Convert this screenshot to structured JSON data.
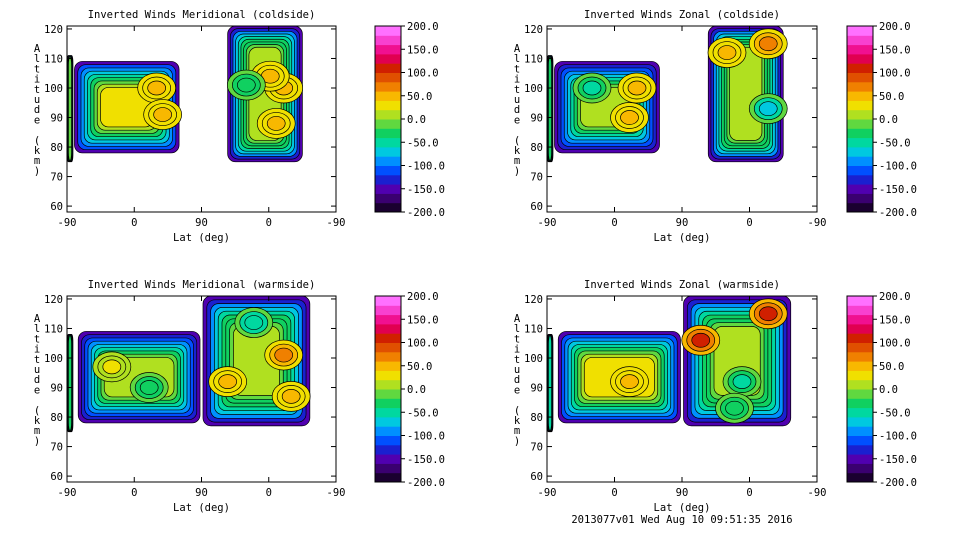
{
  "footer": "2013077v01 Wed Aug 10 09:51:35 2016",
  "colorbar": {
    "ticks": [
      "200.0",
      "150.0",
      "100.0",
      "50.0",
      "0.0",
      "-50.0",
      "-100.0",
      "-150.0",
      "-200.0"
    ],
    "range": [
      -200,
      200
    ],
    "colors": [
      "#1a0030",
      "#3a0070",
      "#5000b0",
      "#1a20d0",
      "#0050ff",
      "#0090ff",
      "#00c8e0",
      "#00d8a0",
      "#10d060",
      "#60d840",
      "#b0e020",
      "#f0e000",
      "#f8b800",
      "#f08000",
      "#e05000",
      "#d02000",
      "#e00050",
      "#f01090",
      "#f840d0",
      "#ff70ff"
    ],
    "line_color": "#000000"
  },
  "chart_data": [
    {
      "type": "contour",
      "title": "Inverted Winds Meridional (coldside)",
      "xlabel": "Lat (deg)",
      "ylabel": "Altitude (km)",
      "xticks": [
        "-90",
        "0",
        "90",
        "0",
        "-90"
      ],
      "yticks": [
        "60",
        "70",
        "80",
        "90",
        "100",
        "110",
        "120"
      ],
      "ylim": [
        58,
        121
      ],
      "segments": [
        {
          "x": [
            -90,
            -82
          ],
          "y": [
            75,
            111
          ],
          "value": -20
        },
        {
          "x": [
            -80,
            60
          ],
          "y": [
            78,
            109
          ],
          "value": 20
        },
        {
          "x": [
            125,
            225
          ],
          "y": [
            75,
            121
          ],
          "value": 10
        }
      ],
      "features": [
        {
          "x": 30,
          "y": 100,
          "value": 50
        },
        {
          "x": 38,
          "y": 91,
          "value": 55
        },
        {
          "x": 200,
          "y": 100,
          "value": 50
        },
        {
          "x": 182,
          "y": 104,
          "value": 45
        },
        {
          "x": 190,
          "y": 88,
          "value": 45
        },
        {
          "x": 150,
          "y": 101,
          "value": -30
        }
      ]
    },
    {
      "type": "contour",
      "title": "Inverted Winds Zonal (coldside)",
      "xlabel": "Lat (deg)",
      "ylabel": "Altitude (km)",
      "xticks": [
        "-90",
        "0",
        "90",
        "0",
        "-90"
      ],
      "yticks": [
        "60",
        "70",
        "80",
        "90",
        "100",
        "110",
        "120"
      ],
      "ylim": [
        58,
        121
      ],
      "segments": [
        {
          "x": [
            -90,
            -82
          ],
          "y": [
            75,
            111
          ],
          "value": -40
        },
        {
          "x": [
            -80,
            60
          ],
          "y": [
            78,
            109
          ],
          "value": 0
        },
        {
          "x": [
            125,
            225
          ],
          "y": [
            75,
            121
          ],
          "value": 10
        }
      ],
      "features": [
        {
          "x": 20,
          "y": 90,
          "value": 55
        },
        {
          "x": 30,
          "y": 100,
          "value": 40
        },
        {
          "x": -30,
          "y": 100,
          "value": -50
        },
        {
          "x": 205,
          "y": 93,
          "value": -70
        },
        {
          "x": 205,
          "y": 115,
          "value": 60
        },
        {
          "x": 150,
          "y": 112,
          "value": 40
        }
      ]
    },
    {
      "type": "contour",
      "title": "Inverted Winds Meridional (warmside)",
      "xlabel": "Lat (deg)",
      "ylabel": "Altitude (km)",
      "xticks": [
        "-90",
        "0",
        "90",
        "0",
        "-90"
      ],
      "yticks": [
        "60",
        "70",
        "80",
        "90",
        "100",
        "110",
        "120"
      ],
      "ylim": [
        58,
        121
      ],
      "segments": [
        {
          "x": [
            -90,
            -82
          ],
          "y": [
            75,
            108
          ],
          "value": -30
        },
        {
          "x": [
            -75,
            88
          ],
          "y": [
            78,
            109
          ],
          "value": 0
        },
        {
          "x": [
            92,
            235
          ],
          "y": [
            77,
            121
          ],
          "value": 10
        }
      ],
      "features": [
        {
          "x": 125,
          "y": 92,
          "value": 50
        },
        {
          "x": 200,
          "y": 101,
          "value": 70
        },
        {
          "x": 210,
          "y": 87,
          "value": 50
        },
        {
          "x": 160,
          "y": 112,
          "value": -60
        },
        {
          "x": 20,
          "y": 90,
          "value": -30
        },
        {
          "x": -30,
          "y": 97,
          "value": 20
        }
      ]
    },
    {
      "type": "contour",
      "title": "Inverted Winds Zonal (warmside)",
      "xlabel": "Lat (deg)",
      "ylabel": "Altitude (km)",
      "xticks": [
        "-90",
        "0",
        "90",
        "0",
        "-90"
      ],
      "yticks": [
        "60",
        "70",
        "80",
        "90",
        "100",
        "110",
        "120"
      ],
      "ylim": [
        58,
        121
      ],
      "segments": [
        {
          "x": [
            -90,
            -82
          ],
          "y": [
            75,
            108
          ],
          "value": -60
        },
        {
          "x": [
            -75,
            88
          ],
          "y": [
            78,
            109
          ],
          "value": 30
        },
        {
          "x": [
            92,
            235
          ],
          "y": [
            77,
            121
          ],
          "value": 10
        }
      ],
      "features": [
        {
          "x": 115,
          "y": 106,
          "value": 110
        },
        {
          "x": 205,
          "y": 115,
          "value": 110
        },
        {
          "x": 20,
          "y": 92,
          "value": 55
        },
        {
          "x": 170,
          "y": 92,
          "value": -50
        },
        {
          "x": 160,
          "y": 83,
          "value": -30
        }
      ]
    }
  ]
}
